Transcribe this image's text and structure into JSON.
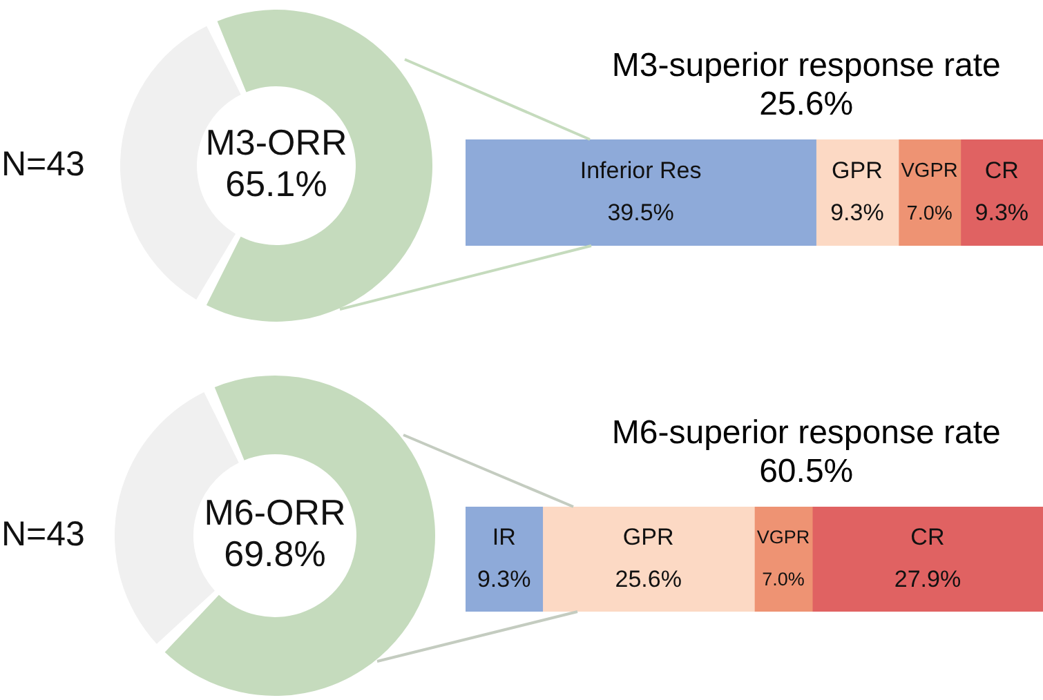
{
  "chart_data": [
    {
      "type": "donut",
      "categories": [
        null,
        null
      ],
      "values": [
        65.1,
        34.9
      ],
      "colors": [
        "#c5dbbd",
        "#f0f0f0"
      ],
      "annotations": [
        "N=43",
        "M3-ORR",
        "65.1%"
      ]
    },
    {
      "type": "bar",
      "orientation": "horizontal",
      "stacked": true,
      "title": "M3-superior response rate",
      "subtitle": "25.6%",
      "categories": [
        null
      ],
      "series": [
        {
          "name": "Inferior Res",
          "color": "#8eaad9",
          "values": [
            39.5
          ],
          "value_labels": [
            "39.5%"
          ]
        },
        {
          "name": "GPR",
          "color": "#fcd9c4",
          "values": [
            9.3
          ],
          "value_labels": [
            "9.3%"
          ]
        },
        {
          "name": "VGPR",
          "color": "#ee9373",
          "values": [
            7.0
          ],
          "value_labels": [
            "7.0%"
          ]
        },
        {
          "name": "CR",
          "color": "#e06262",
          "values": [
            9.3
          ],
          "value_labels": [
            "9.3%"
          ]
        }
      ]
    },
    {
      "type": "donut",
      "categories": [
        null,
        null
      ],
      "values": [
        69.8,
        30.2
      ],
      "colors": [
        "#c5dbbd",
        "#f0f0f0"
      ],
      "annotations": [
        "N=43",
        "M6-ORR",
        "69.8%"
      ]
    },
    {
      "type": "bar",
      "orientation": "horizontal",
      "stacked": true,
      "title": "M6-superior response rate",
      "subtitle": "60.5%",
      "categories": [
        null
      ],
      "series": [
        {
          "name": "IR",
          "color": "#8eaad9",
          "values": [
            9.3
          ],
          "value_labels": [
            "9.3%"
          ]
        },
        {
          "name": "GPR",
          "color": "#fcd9c4",
          "values": [
            25.6
          ],
          "value_labels": [
            "25.6%"
          ]
        },
        {
          "name": "VGPR",
          "color": "#ee9373",
          "values": [
            7.0
          ],
          "value_labels": [
            "7.0%"
          ]
        },
        {
          "name": "CR",
          "color": "#e06262",
          "values": [
            27.9
          ],
          "value_labels": [
            "27.9%"
          ]
        }
      ]
    }
  ]
}
